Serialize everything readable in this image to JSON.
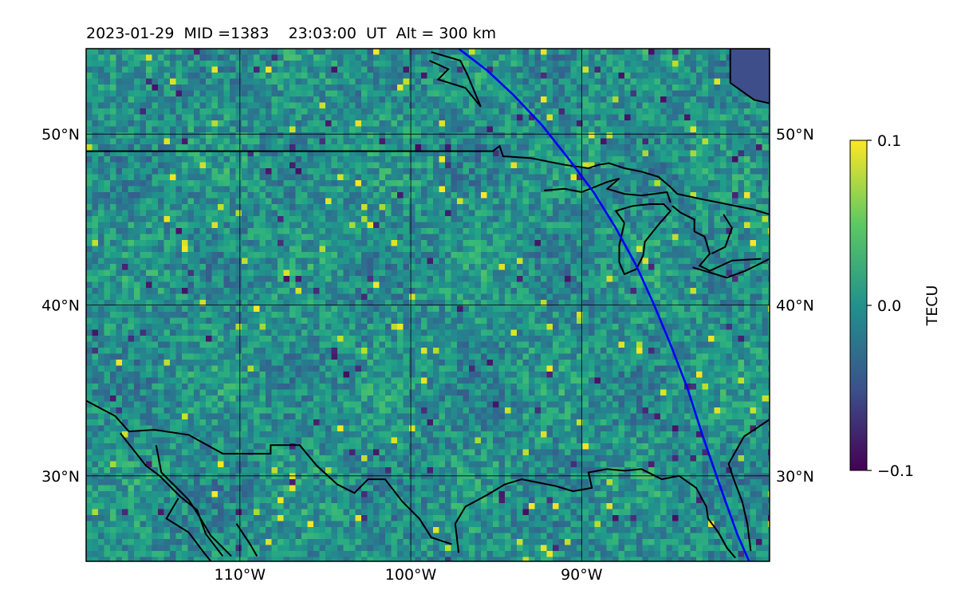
{
  "title": "2023-01-29  MID =1383    23:03:00  UT  Alt = 300 km",
  "colorbar": {
    "label": "TECU",
    "ticks": [
      "0.1",
      "0.0",
      "−0.1"
    ],
    "range": [
      -0.1,
      0.1
    ],
    "colormap": "viridis",
    "colors": [
      "#440154",
      "#3b528b",
      "#21918c",
      "#5ec962",
      "#fde725"
    ]
  },
  "chart_data": {
    "type": "heatmap",
    "title": "2023-01-29  MID =1383    23:03:00  UT  Alt = 300 km",
    "projection": "map",
    "xlim": [
      -119,
      -79
    ],
    "ylim": [
      25,
      55
    ],
    "grid": true,
    "x_ticks": [
      {
        "value": -110,
        "label": "110°W"
      },
      {
        "value": -100,
        "label": "100°W"
      },
      {
        "value": -90,
        "label": "90°W"
      }
    ],
    "y_ticks": [
      {
        "value": 30,
        "label": "30°N"
      },
      {
        "value": 40,
        "label": "40°N"
      },
      {
        "value": 50,
        "label": "50°N"
      }
    ],
    "colorbar_label": "TECU",
    "value_range": [
      -0.1,
      0.1
    ],
    "mean_value": 0.0,
    "overlay_line": {
      "color": "#0000ff",
      "points": [
        [
          -97.2,
          55
        ],
        [
          -95.5,
          53.7
        ],
        [
          -94.0,
          52.3
        ],
        [
          -92.3,
          50.5
        ],
        [
          -90.8,
          48.6
        ],
        [
          -89.3,
          46.6
        ],
        [
          -88.0,
          44.5
        ],
        [
          -86.8,
          42.3
        ],
        [
          -85.8,
          40.1
        ],
        [
          -84.8,
          37.7
        ],
        [
          -83.8,
          35.1
        ],
        [
          -82.9,
          32.3
        ],
        [
          -81.9,
          29.4
        ],
        [
          -80.9,
          26.6
        ],
        [
          -80.2,
          25
        ]
      ]
    },
    "coastlines_color": "#000000"
  }
}
